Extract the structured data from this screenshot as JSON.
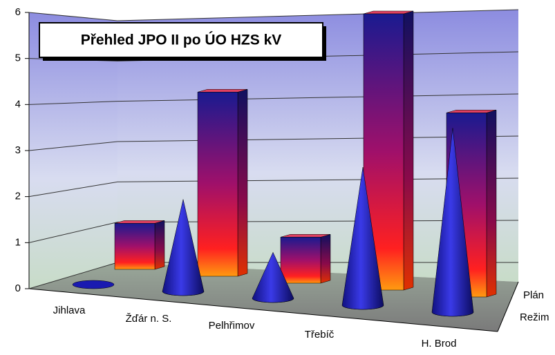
{
  "chart_data": {
    "type": "bar3d",
    "title": "Přehled JPO II po ÚO HZS kV",
    "categories": [
      "Jihlava",
      "Žďár n. S.",
      "Pelhřimov",
      "Třebíč",
      "H. Brod"
    ],
    "series": [
      {
        "name": "Plán",
        "values": [
          1,
          4,
          1,
          6,
          4
        ]
      },
      {
        "name": "Režim",
        "values": [
          0,
          2,
          1,
          3,
          4
        ]
      }
    ],
    "ylim": [
      0,
      6
    ],
    "yticks": [
      0,
      1,
      2,
      3,
      4,
      5,
      6
    ],
    "grid": true
  }
}
